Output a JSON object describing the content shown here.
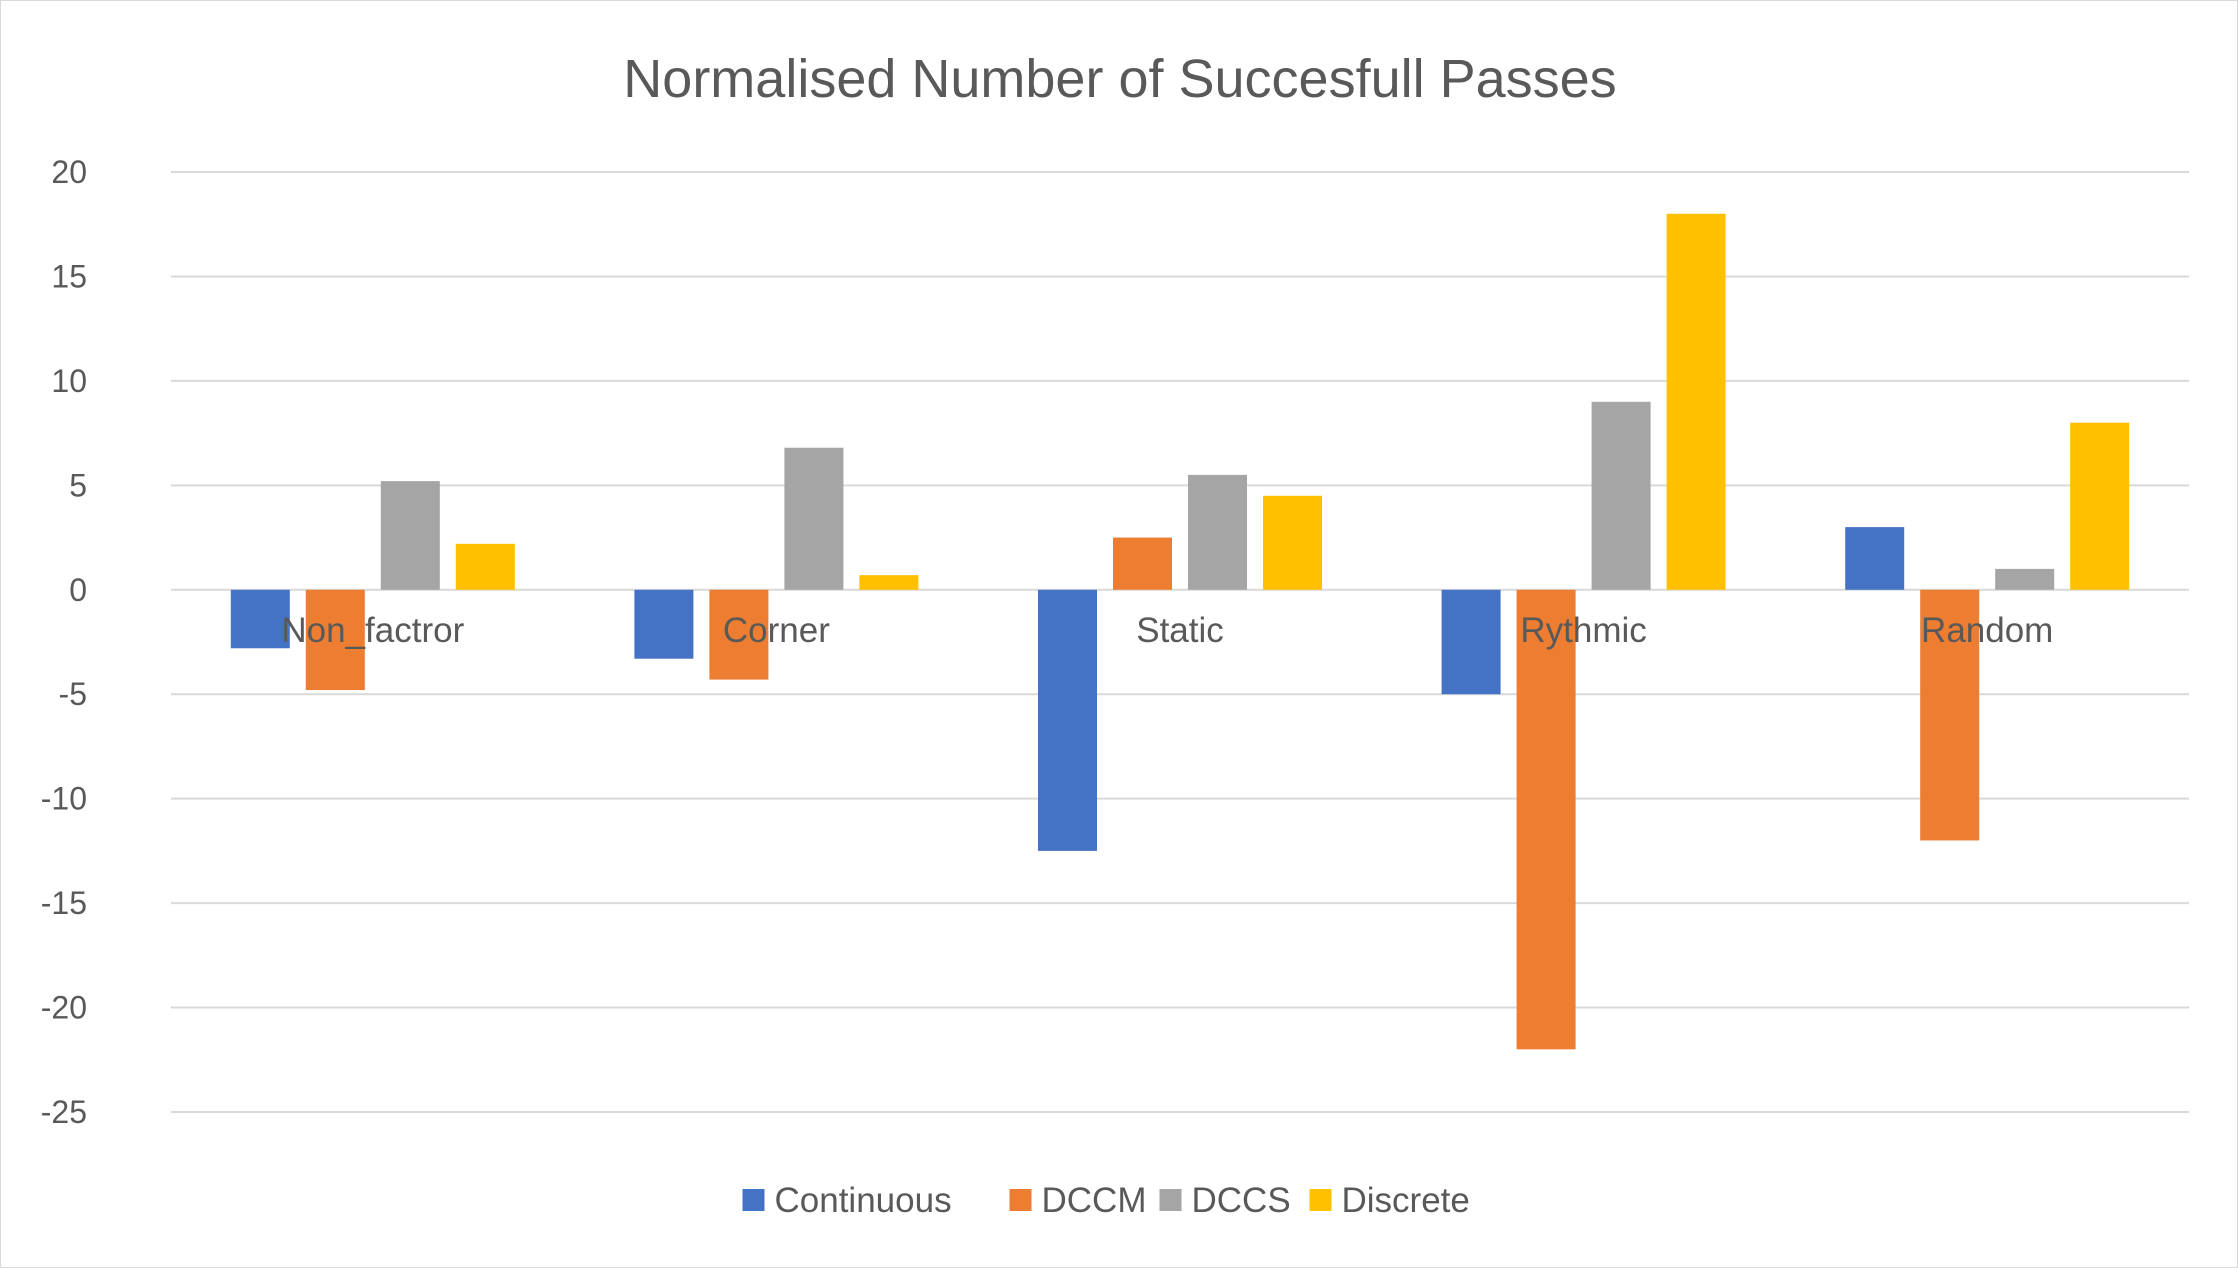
{
  "chart_data": {
    "type": "bar",
    "title": "Normalised Number of Succesfull Passes",
    "xlabel": "",
    "ylabel": "",
    "categories": [
      "Non_factror",
      "Corner",
      "Static",
      "Rythmic",
      "Random"
    ],
    "series": [
      {
        "name": "Continuous",
        "color": "#4472C4",
        "values": [
          -2.8,
          -3.3,
          -12.5,
          -5,
          3
        ]
      },
      {
        "name": "DCCM",
        "color": "#ED7D31",
        "values": [
          -4.8,
          -4.3,
          2.5,
          -22,
          -12
        ]
      },
      {
        "name": "DCCS",
        "color": "#A5A5A5",
        "values": [
          5.2,
          6.8,
          5.5,
          9,
          1
        ]
      },
      {
        "name": "Discrete",
        "color": "#FFC000",
        "values": [
          2.2,
          0.7,
          4.5,
          18,
          8
        ]
      }
    ],
    "ylim": [
      -25,
      20
    ],
    "yticks": [
      20,
      15,
      10,
      5,
      0,
      -5,
      -10,
      -15,
      -20,
      -25
    ],
    "grid": true,
    "legend_position": "bottom"
  }
}
